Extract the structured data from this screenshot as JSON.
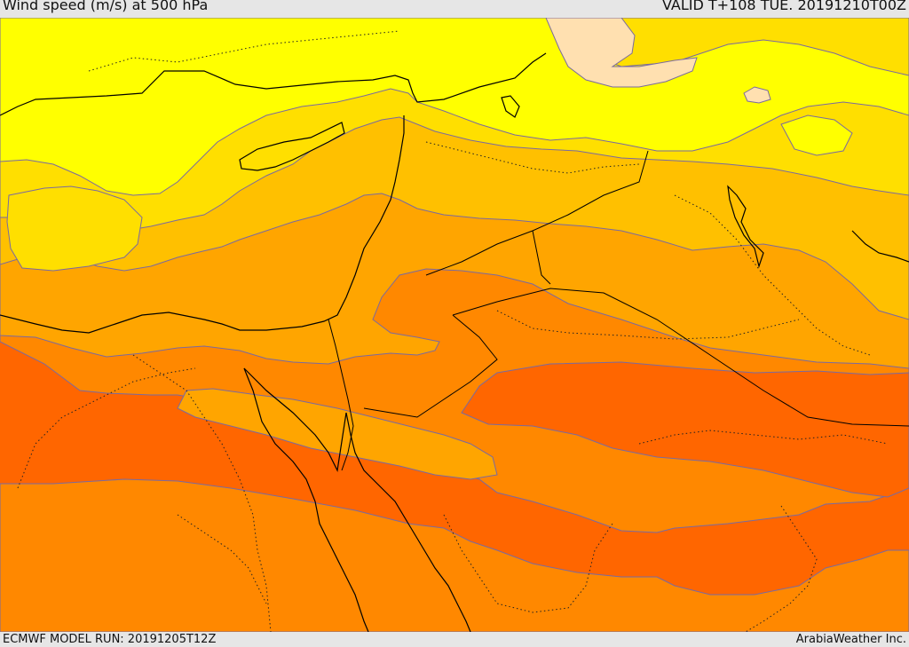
{
  "header": {
    "title": "Wind speed (m/s) at 500 hPa",
    "valid": "VALID T+108 TUE. 20191210T00Z"
  },
  "footer": {
    "model_run": "ECMWF MODEL RUN: 20191205T12Z",
    "credit": "ArabiaWeather Inc."
  },
  "colors": {
    "band_palest": "#ffe0b0",
    "band_yellow": "#ffff00",
    "band_gold": "#ffdf00",
    "band_amber": "#ffc000",
    "band_light_orange": "#ffa500",
    "band_orange": "#ff8800",
    "band_dark_orange": "#ff6600",
    "contour_line": "#7a6aa0",
    "coastline": "#000000",
    "header_background": "#e6e6e6"
  }
}
